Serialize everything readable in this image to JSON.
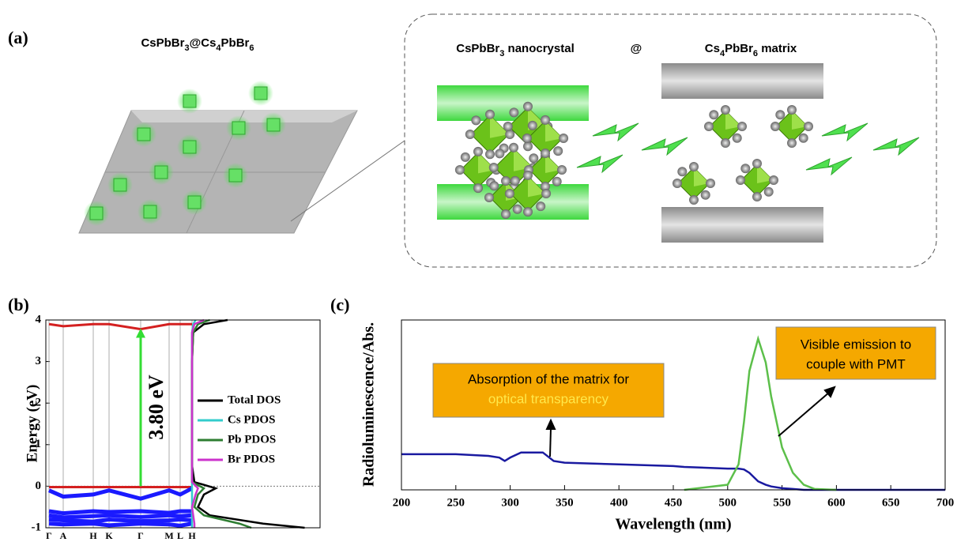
{
  "panel_a": {
    "label": "(a)",
    "composite": "CsPbBr3@Cs4PbBr6",
    "nanocrystal": "CsPbBr3 nanocrystal",
    "at": "@",
    "matrix": "Cs4PbBr6 matrix"
  },
  "chart_data": [
    {
      "type": "band",
      "panel_label": "(b)",
      "ylabel": "Energy (eV)",
      "ylim": [
        -1,
        4
      ],
      "yticks": [
        -1,
        0,
        1,
        2,
        3,
        4
      ],
      "kpoints": [
        "Γ",
        "A",
        "H",
        "K",
        "Γ",
        "M",
        "L",
        "H"
      ],
      "band_color": "#1a1aff",
      "edge_color": "#d42020",
      "bands": [
        [
          3.9,
          3.85,
          3.9,
          3.9,
          3.78,
          3.9,
          3.9,
          3.9
        ],
        [
          -0.02,
          -0.02,
          -0.02,
          -0.02,
          -0.02,
          -0.02,
          -0.02,
          -0.02
        ],
        [
          -0.1,
          -0.25,
          -0.2,
          -0.1,
          -0.3,
          -0.1,
          -0.2,
          -0.05
        ],
        [
          -0.6,
          -0.65,
          -0.6,
          -0.62,
          -0.6,
          -0.64,
          -0.6,
          -0.6
        ],
        [
          -0.7,
          -0.75,
          -0.72,
          -0.7,
          -0.74,
          -0.7,
          -0.72,
          -0.7
        ],
        [
          -0.8,
          -0.82,
          -0.85,
          -0.8,
          -0.84,
          -0.82,
          -0.8,
          -0.82
        ],
        [
          -0.9,
          -0.92,
          -0.9,
          -0.94,
          -0.9,
          -0.92,
          -0.95,
          -0.9
        ]
      ],
      "gap": 3.8,
      "gap_annotation": "3.80 eV",
      "fermi_level": 0,
      "xlim": [
        0,
        1
      ],
      "energies": [
        -1,
        -0.9,
        -0.7,
        -0.5,
        -0.2,
        -0.05,
        0.1,
        0.5,
        1,
        2,
        3,
        3.7,
        3.9,
        4
      ],
      "series": [
        {
          "name": "Total DOS",
          "color": "#000000",
          "values": [
            0.95,
            0.6,
            0.15,
            0.05,
            0.1,
            0.2,
            0.02,
            0,
            0,
            0,
            0,
            0.01,
            0.1,
            0.3
          ]
        },
        {
          "name": "Cs PDOS",
          "color": "#33cccc",
          "values": [
            0,
            0,
            0,
            0,
            0,
            0,
            0,
            0,
            0,
            0,
            0,
            0,
            0.01,
            0.03
          ]
        },
        {
          "name": "Pb PDOS",
          "color": "#2e7d32",
          "values": [
            0.5,
            0.4,
            0.1,
            0.02,
            0.05,
            0.1,
            0,
            0,
            0,
            0,
            0,
            0.01,
            0.05,
            0.15
          ]
        },
        {
          "name": "Br PDOS",
          "color": "#cc33cc",
          "values": [
            0.02,
            0.02,
            0.01,
            0,
            0.03,
            0.05,
            0,
            0,
            0,
            0,
            0,
            0,
            0.02,
            0.1
          ]
        }
      ]
    },
    {
      "type": "line",
      "panel_label": "(c)",
      "xlabel": "Wavelength (nm)",
      "ylabel": "Radioluminescence/Abs.",
      "xlim": [
        200,
        700
      ],
      "xticks": [
        200,
        250,
        300,
        350,
        400,
        450,
        500,
        550,
        600,
        650,
        700
      ],
      "ylim": [
        0,
        1
      ],
      "x": [
        200,
        250,
        280,
        290,
        295,
        300,
        310,
        330,
        340,
        350,
        400,
        450,
        460,
        500,
        510,
        515,
        520,
        528,
        535,
        540,
        550,
        560,
        570,
        580,
        600,
        650,
        700
      ],
      "series": [
        {
          "color": "#1a1aa0",
          "values": [
            0.21,
            0.21,
            0.2,
            0.19,
            0.17,
            0.19,
            0.22,
            0.22,
            0.17,
            0.16,
            0.15,
            0.14,
            0.135,
            0.125,
            0.125,
            0.12,
            0.1,
            0.05,
            0.03,
            0.02,
            0.01,
            0.005,
            0,
            0,
            0,
            0,
            0
          ]
        },
        {
          "color": "#5cbf4a",
          "values": [
            null,
            null,
            null,
            null,
            null,
            null,
            null,
            null,
            null,
            null,
            null,
            null,
            0,
            0.03,
            0.15,
            0.4,
            0.7,
            0.89,
            0.75,
            0.55,
            0.25,
            0.1,
            0.03,
            0.005,
            0,
            null,
            null
          ]
        }
      ],
      "annotations": {
        "absorption": [
          "Absorption of the matrix for",
          "optical transparency"
        ],
        "emission": [
          "Visible emission to",
          "couple with PMT"
        ]
      }
    }
  ]
}
